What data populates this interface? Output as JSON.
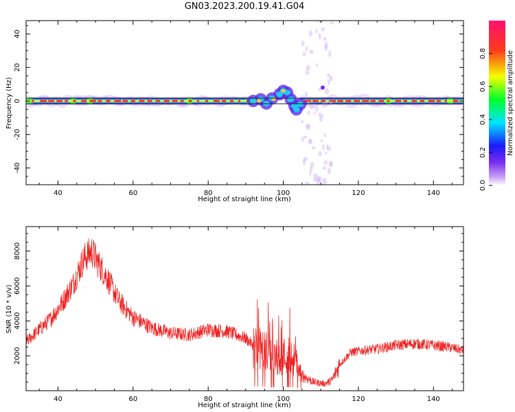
{
  "figure": {
    "title": "GN03.2023.200.19.41.G04"
  },
  "chart_data": [
    {
      "type": "heatmap",
      "title": "",
      "xlabel": "Height of straight line (km)",
      "ylabel": "Frequency (Hz)",
      "xlim": [
        31.5,
        148
      ],
      "ylim": [
        -50,
        48
      ],
      "xticks": [
        40,
        60,
        80,
        100,
        120,
        140
      ],
      "yticks": [
        -40,
        -20,
        0,
        20,
        40
      ],
      "colorbar": {
        "label": "Normalized spectral amplitude",
        "range": [
          0,
          1
        ],
        "ticks": [
          0.0,
          0.2,
          0.4,
          0.6,
          0.8
        ],
        "colormap": [
          "#ffffff",
          "#8a2be2",
          "#0000ff",
          "#00ffff",
          "#00ff00",
          "#ffff00",
          "#ff0000",
          "#ff1493"
        ]
      },
      "features": {
        "main_band_frequency_hz": 0,
        "disturbance_region_km": [
          92,
          104
        ],
        "disturbance_peak": {
          "height_km": 100,
          "frequency_hz": 6
        },
        "disturbance_trough": {
          "height_km": 103.5,
          "frequency_hz": -5
        },
        "scatter_region_km": [
          105,
          113
        ]
      }
    },
    {
      "type": "line",
      "title": "",
      "xlabel": "Height of straight line (km)",
      "ylabel": "SNR (10 * v/v)",
      "xlim": [
        31.5,
        148
      ],
      "ylim": [
        0,
        9400
      ],
      "xticks": [
        40,
        60,
        80,
        100,
        120,
        140
      ],
      "yticks": [
        2000,
        4000,
        6000,
        8000
      ],
      "series": [
        {
          "color": "#ee2222",
          "x": [
            32,
            35,
            38,
            41,
            44,
            47,
            49,
            51,
            53,
            56,
            60,
            65,
            70,
            75,
            80,
            85,
            90,
            93,
            95,
            97,
            99,
            101,
            103,
            105,
            108,
            111,
            113,
            115,
            118,
            121,
            125,
            130,
            135,
            140,
            144,
            148
          ],
          "y": [
            2900,
            3500,
            4100,
            5000,
            6100,
            7600,
            8000,
            7200,
            6500,
            5200,
            4200,
            3600,
            3300,
            3200,
            3500,
            3400,
            3000,
            2400,
            2300,
            2000,
            1900,
            2100,
            1800,
            900,
            500,
            400,
            600,
            1500,
            2200,
            2300,
            2400,
            2600,
            2700,
            2600,
            2500,
            2300
          ]
        }
      ]
    }
  ]
}
